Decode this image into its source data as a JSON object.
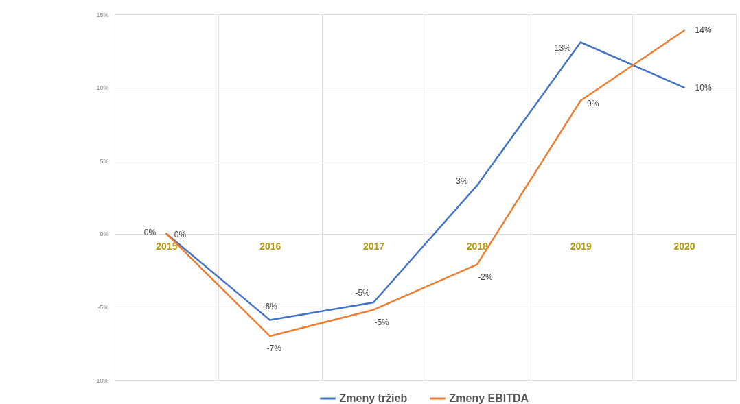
{
  "chart_data": {
    "type": "line",
    "categories": [
      "2015",
      "2016",
      "2017",
      "2018",
      "2019",
      "2020"
    ],
    "series": [
      {
        "name": "Zmeny tržieb",
        "color": "#4472c4",
        "values": [
          0,
          -5.9,
          -4.7,
          3.3,
          13.1,
          10.0
        ],
        "value_labels": [
          "0%",
          "-6%",
          "-5%",
          "3%",
          "13%",
          "10%"
        ]
      },
      {
        "name": "Zmeny EBITDA",
        "color": "#ed7d31",
        "values": [
          0,
          -7.0,
          -5.2,
          -2.1,
          9.1,
          13.9
        ],
        "value_labels": [
          "0%",
          "-7%",
          "-5%",
          "-2%",
          "9%",
          "14%"
        ]
      }
    ],
    "ylim": [
      -10,
      15
    ],
    "yticks": [
      {
        "value": -10,
        "label": "-10%"
      },
      {
        "value": -5,
        "label": "-5%"
      },
      {
        "value": 0,
        "label": "0%"
      },
      {
        "value": 5,
        "label": "5%"
      },
      {
        "value": 10,
        "label": "10%"
      },
      {
        "value": 15,
        "label": "15%"
      }
    ],
    "grid": true,
    "legend": "bottom",
    "line_style": "solid"
  }
}
